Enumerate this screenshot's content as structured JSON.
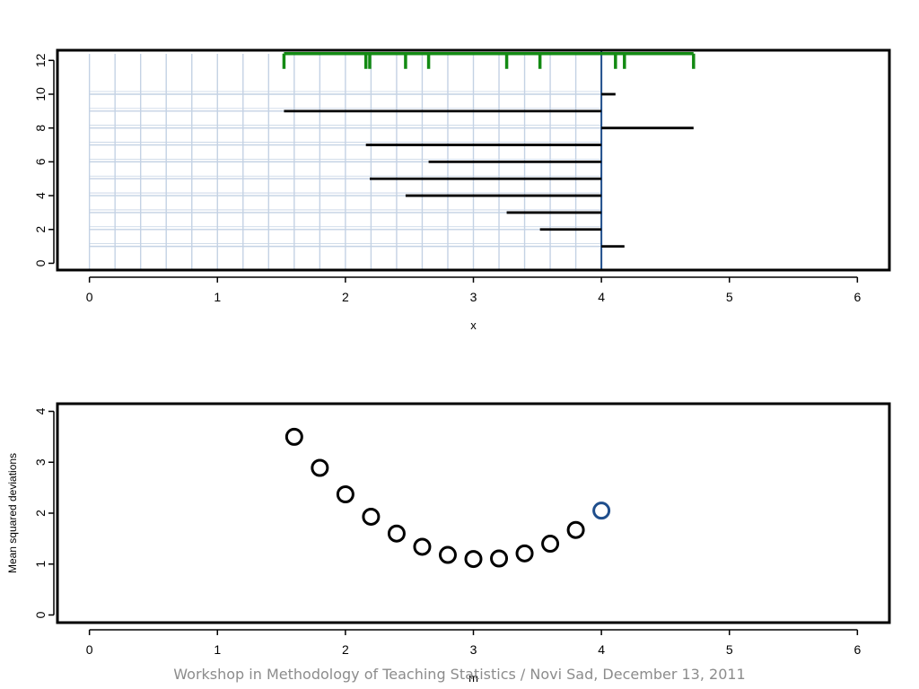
{
  "footer": "Workshop in Methodology of Teaching Statistics / Novi Sad, December 13, 2011",
  "colors": {
    "green": "#138a13",
    "blue": "#1f4e8c",
    "grid": "#c4d2e4",
    "black": "#000000"
  },
  "chart_data": [
    {
      "type": "segments",
      "xlabel": "x",
      "ylabel": "",
      "xlim": [
        -0.25,
        6.25
      ],
      "ylim": [
        -0.4,
        12.6
      ],
      "xticks": [
        0,
        1,
        2,
        3,
        4,
        5,
        6
      ],
      "yticks": [
        0,
        2,
        4,
        6,
        8,
        10,
        12
      ],
      "reference_m": 4.0,
      "data_x": [
        1.52,
        2.16,
        2.19,
        2.47,
        2.65,
        3.26,
        3.52,
        4.11,
        4.18,
        4.72
      ],
      "rug_y": 12.4,
      "segments": [
        {
          "x": 4.18,
          "y": 1
        },
        {
          "x": 3.52,
          "y": 2
        },
        {
          "x": 3.26,
          "y": 3
        },
        {
          "x": 2.47,
          "y": 4
        },
        {
          "x": 2.19,
          "y": 5
        },
        {
          "x": 2.65,
          "y": 6
        },
        {
          "x": 2.16,
          "y": 7
        },
        {
          "x": 4.72,
          "y": 8
        },
        {
          "x": 1.52,
          "y": 9
        },
        {
          "x": 4.11,
          "y": 10
        }
      ],
      "grid_x_step": 0.2,
      "grid_y_step": 1,
      "grid": true
    },
    {
      "type": "scatter",
      "xlabel": "m",
      "ylabel": "Mean squared deviations",
      "xlim": [
        -0.25,
        6.25
      ],
      "ylim": [
        -0.15,
        4.15
      ],
      "xticks": [
        0,
        1,
        2,
        3,
        4,
        5,
        6
      ],
      "yticks": [
        0,
        1,
        2,
        3,
        4
      ],
      "points": [
        {
          "x": 1.6,
          "y": 3.5
        },
        {
          "x": 1.8,
          "y": 2.89
        },
        {
          "x": 2.0,
          "y": 2.37
        },
        {
          "x": 2.2,
          "y": 1.93
        },
        {
          "x": 2.4,
          "y": 1.6
        },
        {
          "x": 2.6,
          "y": 1.34
        },
        {
          "x": 2.8,
          "y": 1.18
        },
        {
          "x": 3.0,
          "y": 1.1
        },
        {
          "x": 3.2,
          "y": 1.11
        },
        {
          "x": 3.4,
          "y": 1.21
        },
        {
          "x": 3.6,
          "y": 1.4
        },
        {
          "x": 3.8,
          "y": 1.67
        },
        {
          "x": 4.0,
          "y": 2.05,
          "highlight": true
        }
      ]
    }
  ]
}
